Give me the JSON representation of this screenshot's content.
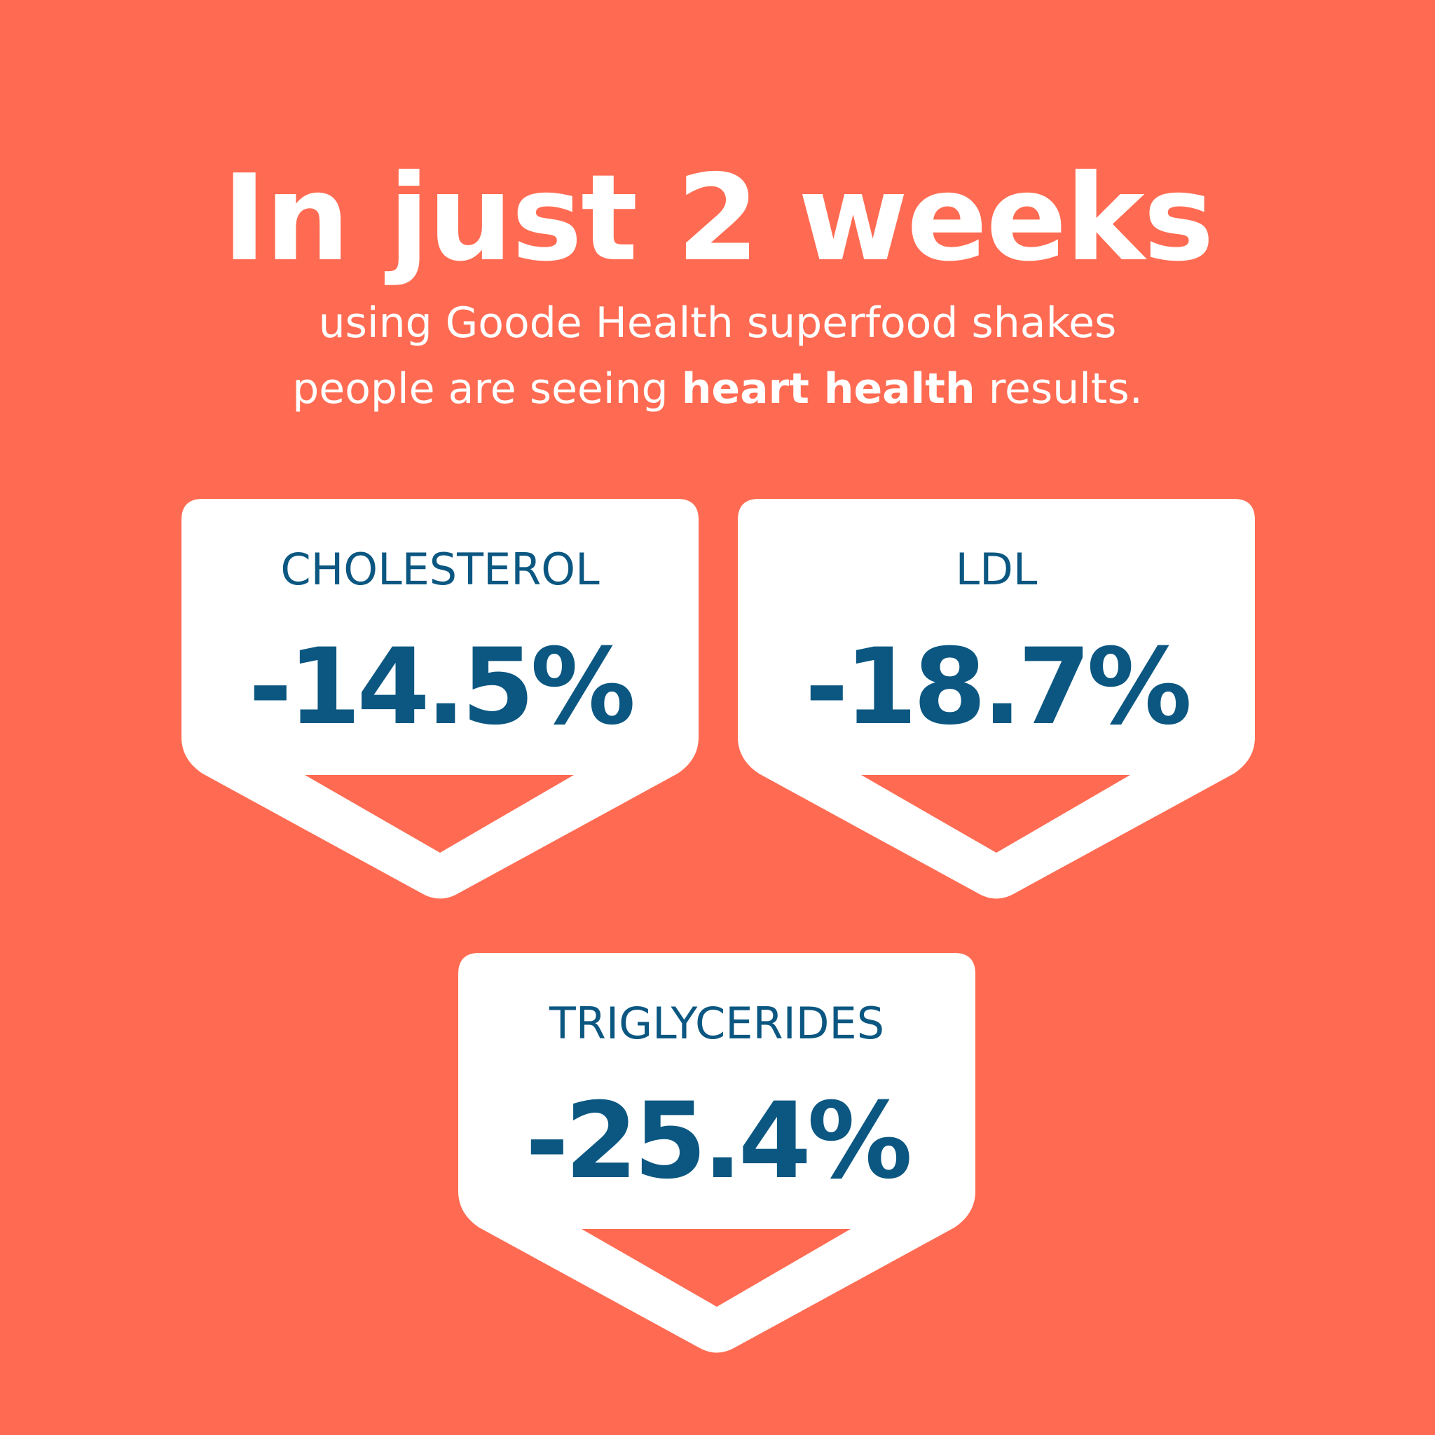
{
  "header": {
    "title": "In just 2 weeks",
    "subtitle": [
      [
        {
          "text": "using Goode Health superfood shakes",
          "bold": false
        }
      ],
      [
        {
          "text": "people are seeing ",
          "bold": false
        },
        {
          "text": "heart health",
          "bold": true
        },
        {
          "text": " results.",
          "bold": false
        }
      ]
    ]
  },
  "cards": [
    {
      "label": "CHOLESTEROL",
      "value": "-14.5%"
    },
    {
      "label": "LDL",
      "value": "-18.7%"
    },
    {
      "label": "TRIGLYCERIDES",
      "value": "-25.4%"
    }
  ]
}
